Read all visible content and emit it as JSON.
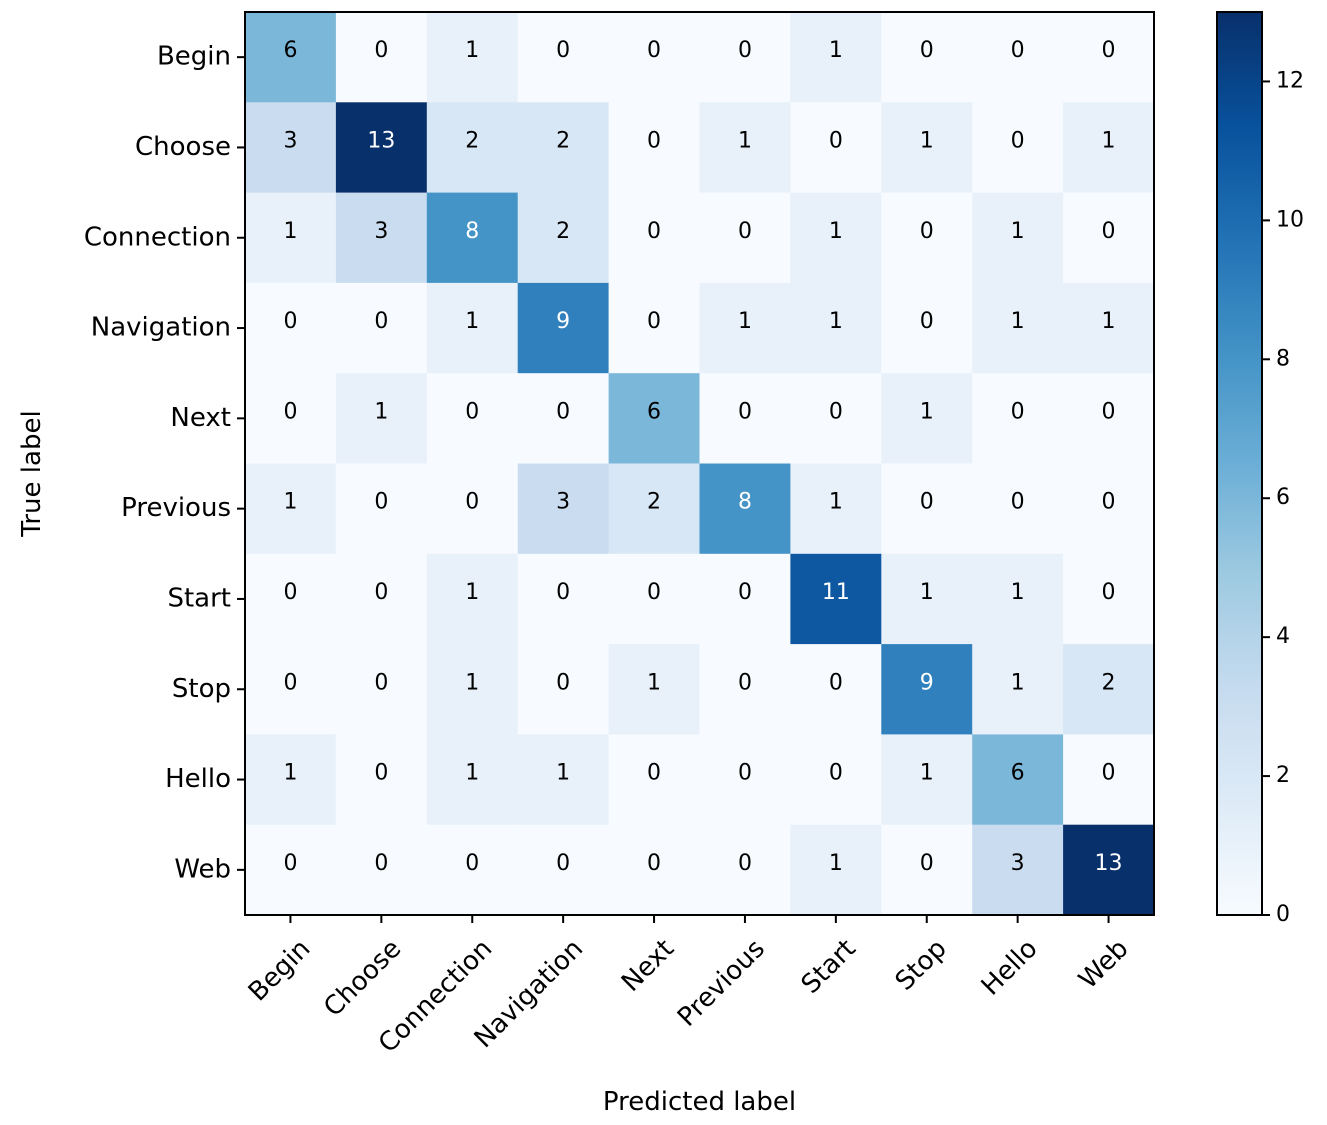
{
  "chart_data": {
    "type": "heatmap",
    "title": "",
    "xlabel": "Predicted label",
    "ylabel": "True label",
    "x_categories": [
      "Begin",
      "Choose",
      "Connection",
      "Navigation",
      "Next",
      "Previous",
      "Start",
      "Stop",
      "Hello",
      "Web"
    ],
    "y_categories": [
      "Begin",
      "Choose",
      "Connection",
      "Navigation",
      "Next",
      "Previous",
      "Start",
      "Stop",
      "Hello",
      "Web"
    ],
    "values": [
      [
        6,
        0,
        1,
        0,
        0,
        0,
        1,
        0,
        0,
        0
      ],
      [
        3,
        13,
        2,
        2,
        0,
        1,
        0,
        1,
        0,
        1
      ],
      [
        1,
        3,
        8,
        2,
        0,
        0,
        1,
        0,
        1,
        0
      ],
      [
        0,
        0,
        1,
        9,
        0,
        1,
        1,
        0,
        1,
        1
      ],
      [
        0,
        1,
        0,
        0,
        6,
        0,
        0,
        1,
        0,
        0
      ],
      [
        1,
        0,
        0,
        3,
        2,
        8,
        1,
        0,
        0,
        0
      ],
      [
        0,
        0,
        1,
        0,
        0,
        0,
        11,
        1,
        1,
        0
      ],
      [
        0,
        0,
        1,
        0,
        1,
        0,
        0,
        9,
        1,
        2
      ],
      [
        1,
        0,
        1,
        1,
        0,
        0,
        0,
        1,
        6,
        0
      ],
      [
        0,
        0,
        0,
        0,
        0,
        0,
        1,
        0,
        3,
        13
      ]
    ],
    "colormap": "Blues",
    "colormap_low": "#f7fbff",
    "colormap_high": "#08306b",
    "vmin": 0,
    "vmax": 13,
    "colorbar_ticks": [
      "0",
      "2",
      "4",
      "6",
      "8",
      "10",
      "12"
    ],
    "colorbar_tick_values": [
      0,
      2,
      4,
      6,
      8,
      10,
      12
    ],
    "grid": false
  }
}
